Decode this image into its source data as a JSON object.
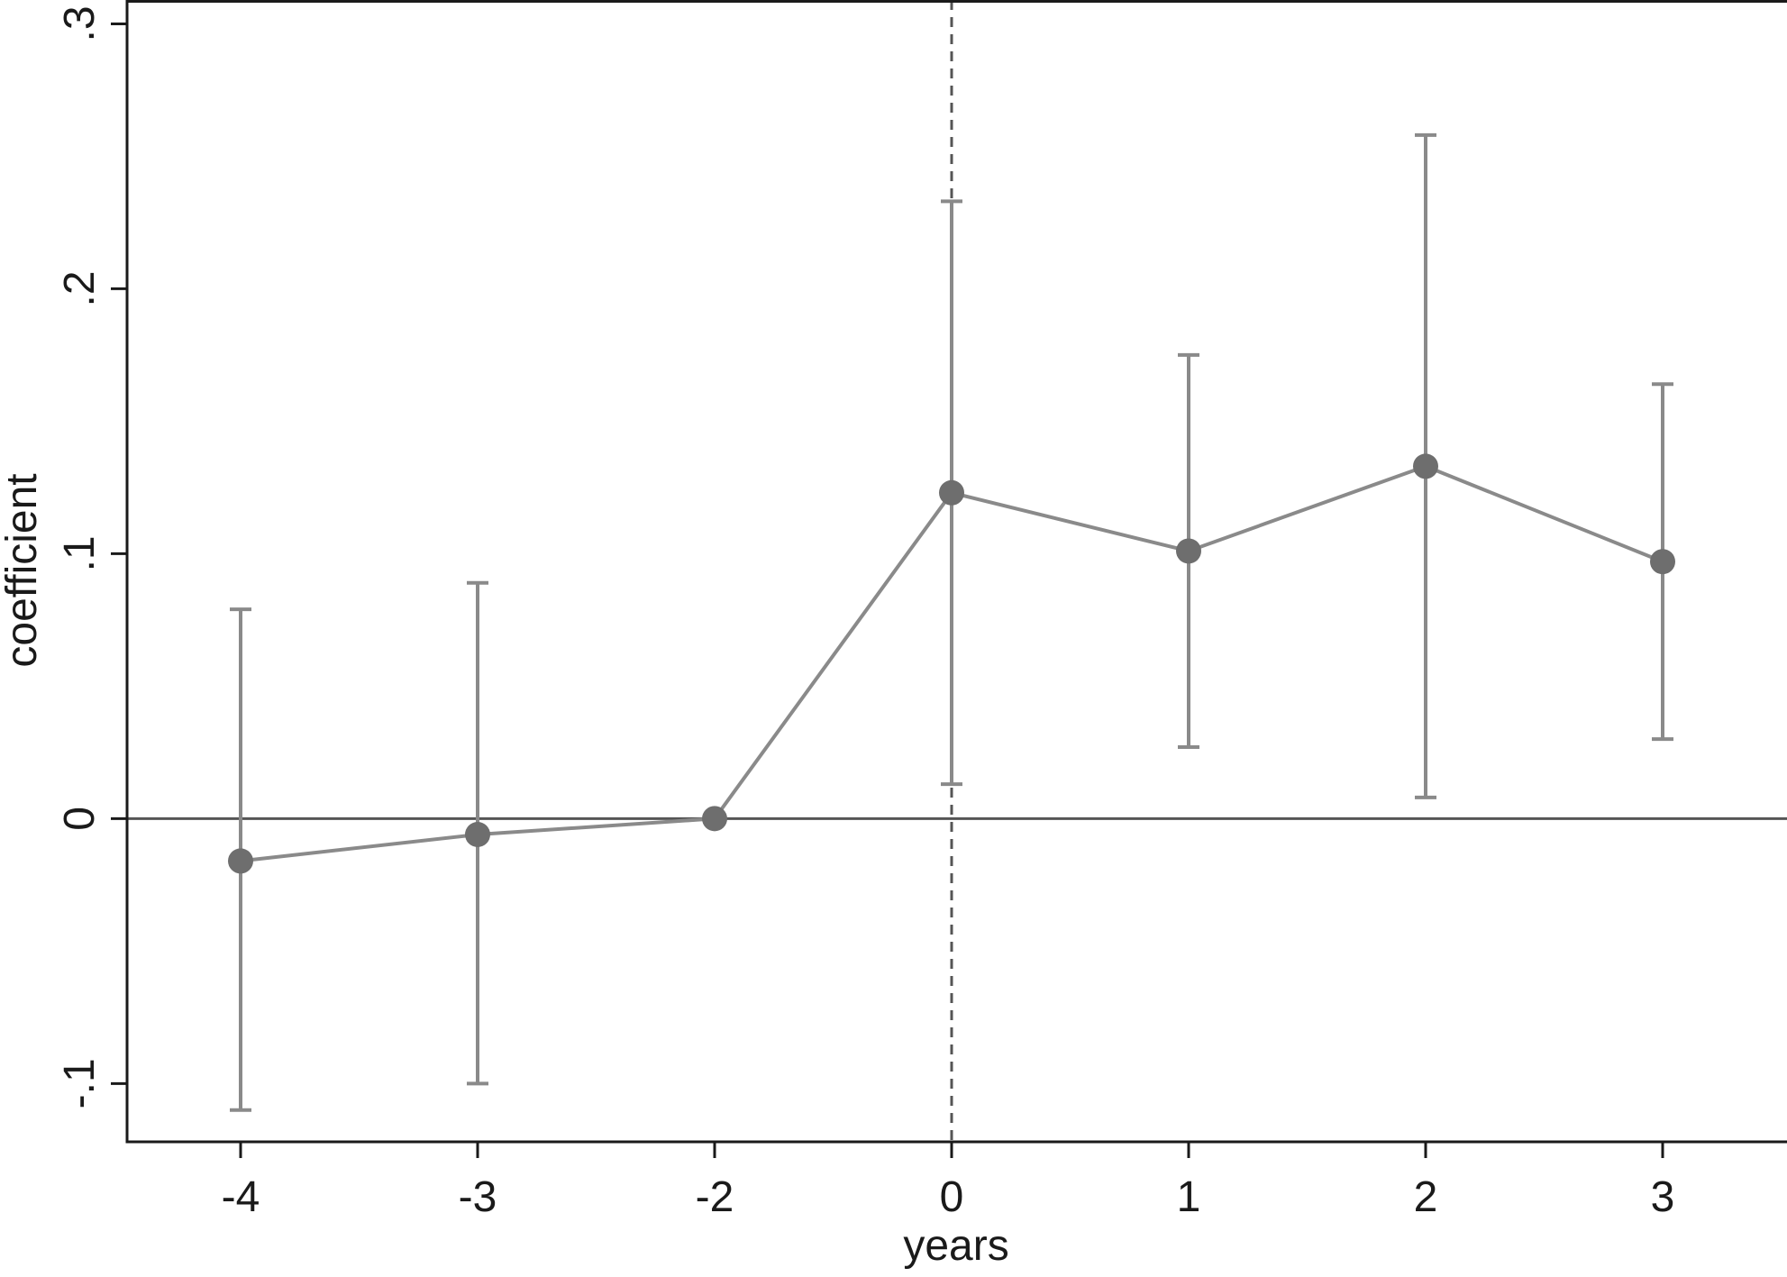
{
  "chart_data": {
    "type": "line",
    "title": "",
    "xlabel": "years",
    "ylabel": "coefficient",
    "categories": [
      "-4",
      "-3",
      "-2",
      "0",
      "1",
      "2",
      "3"
    ],
    "y_ticks": [
      {
        "value": -0.1,
        "label": "-.1"
      },
      {
        "value": 0,
        "label": "0"
      },
      {
        "value": 0.1,
        "label": ".1"
      },
      {
        "value": 0.2,
        "label": ".2"
      },
      {
        "value": 0.3,
        "label": ".3"
      }
    ],
    "ylim": [
      -0.122,
      0.309
    ],
    "series": [
      {
        "values": [
          -0.016,
          -0.006,
          0.0,
          0.123,
          0.101,
          0.133,
          0.097
        ],
        "ci_lower": [
          -0.11,
          -0.1,
          null,
          0.013,
          0.027,
          0.008,
          0.03
        ],
        "ci_upper": [
          0.079,
          0.089,
          null,
          0.233,
          0.175,
          0.258,
          0.164
        ]
      }
    ],
    "reference_lines": {
      "horizontal_y": 0,
      "vertical_at_category": "0",
      "vertical_style": "dashed"
    },
    "grid": false,
    "legend": "none",
    "colors": {
      "series": "#8a8a8a",
      "marker": "#6e6e6e",
      "axis": "#1a1a1a",
      "reference": "#555555"
    }
  }
}
